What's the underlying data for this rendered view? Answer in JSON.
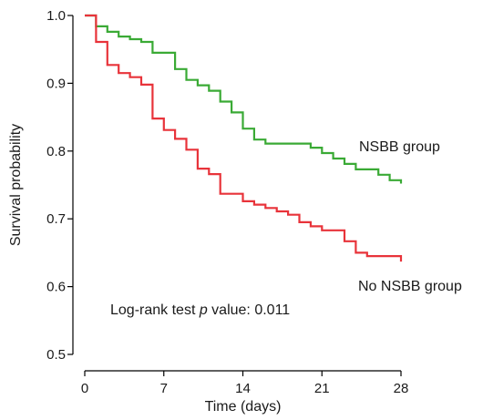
{
  "chart_data": {
    "type": "line",
    "subtype": "kaplan-meier-step",
    "xlabel": "Time (days)",
    "ylabel": "Survival probability",
    "xlim": [
      0,
      28
    ],
    "ylim": [
      0.5,
      1.0
    ],
    "xticks": [
      0,
      7,
      14,
      21,
      28
    ],
    "yticks": [
      0.5,
      0.6,
      0.7,
      0.8,
      0.9,
      1.0
    ],
    "ytick_labels": [
      "0.5",
      "0.6",
      "0.7",
      "0.8",
      "0.9",
      "1.0"
    ],
    "grid": false,
    "legend": "none",
    "series": [
      {
        "name": "NSBB group",
        "color": "#3aaa35",
        "x": [
          0,
          1,
          2,
          3,
          4,
          5,
          6,
          8,
          9,
          10,
          11,
          12,
          13,
          14,
          15,
          16,
          20,
          21,
          22,
          23,
          24,
          26,
          27,
          28
        ],
        "y": [
          1.0,
          0.984,
          0.976,
          0.969,
          0.965,
          0.961,
          0.945,
          0.921,
          0.905,
          0.897,
          0.889,
          0.873,
          0.857,
          0.833,
          0.817,
          0.811,
          0.805,
          0.797,
          0.789,
          0.781,
          0.773,
          0.765,
          0.757,
          0.752
        ]
      },
      {
        "name": "No NSBB group",
        "color": "#e8333a",
        "x": [
          0,
          1,
          2,
          3,
          4,
          5,
          6,
          7,
          8,
          9,
          10,
          11,
          12,
          14,
          15,
          16,
          17,
          18,
          19,
          20,
          21,
          23,
          24,
          25,
          28
        ],
        "y": [
          1.0,
          0.961,
          0.927,
          0.915,
          0.909,
          0.898,
          0.848,
          0.831,
          0.818,
          0.802,
          0.774,
          0.766,
          0.737,
          0.726,
          0.721,
          0.716,
          0.711,
          0.706,
          0.695,
          0.689,
          0.683,
          0.667,
          0.65,
          0.645,
          0.637
        ]
      }
    ],
    "annotations": [
      {
        "prefix": "Log-rank test ",
        "italic": "p",
        "suffix": " value: 0.011"
      }
    ]
  }
}
